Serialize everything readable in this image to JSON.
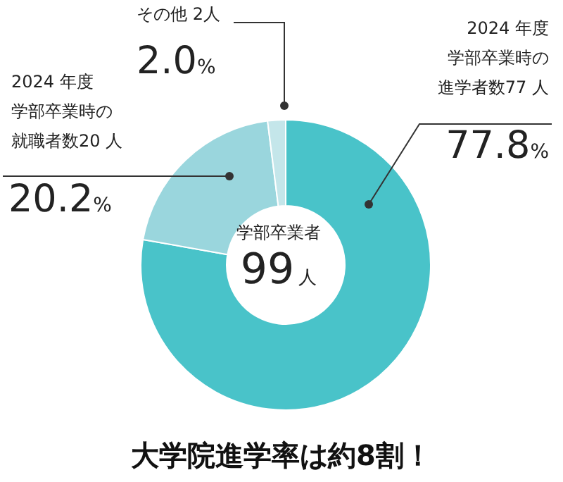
{
  "chart_data": {
    "type": "donut",
    "title": "大学院進学率は約8割！",
    "categories": [
      "2024 年度学部卒業時の進学者数77 人",
      "2024 年度学部卒業時の就職者数20 人",
      "その他 2人"
    ],
    "values": [
      77.8,
      20.2,
      2.0
    ],
    "colors": [
      "#49c3c9",
      "#9ad6dd",
      "#c4e6ea"
    ],
    "value_labels": [
      "77.8%",
      "20.2%",
      "2.0%"
    ],
    "annotations": [
      "学部卒業者",
      "99人"
    ]
  }
}
